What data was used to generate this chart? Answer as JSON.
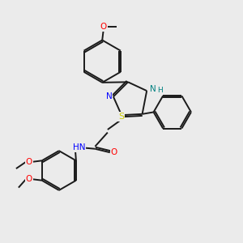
{
  "bg_color": "#ebebeb",
  "bond_color": "#1a1a1a",
  "atom_colors": {
    "N": "#0000ff",
    "O": "#ff0000",
    "S": "#cccc00",
    "NH": "#008080",
    "C": "#1a1a1a"
  },
  "figsize": [
    3.0,
    3.0
  ],
  "dpi": 100
}
